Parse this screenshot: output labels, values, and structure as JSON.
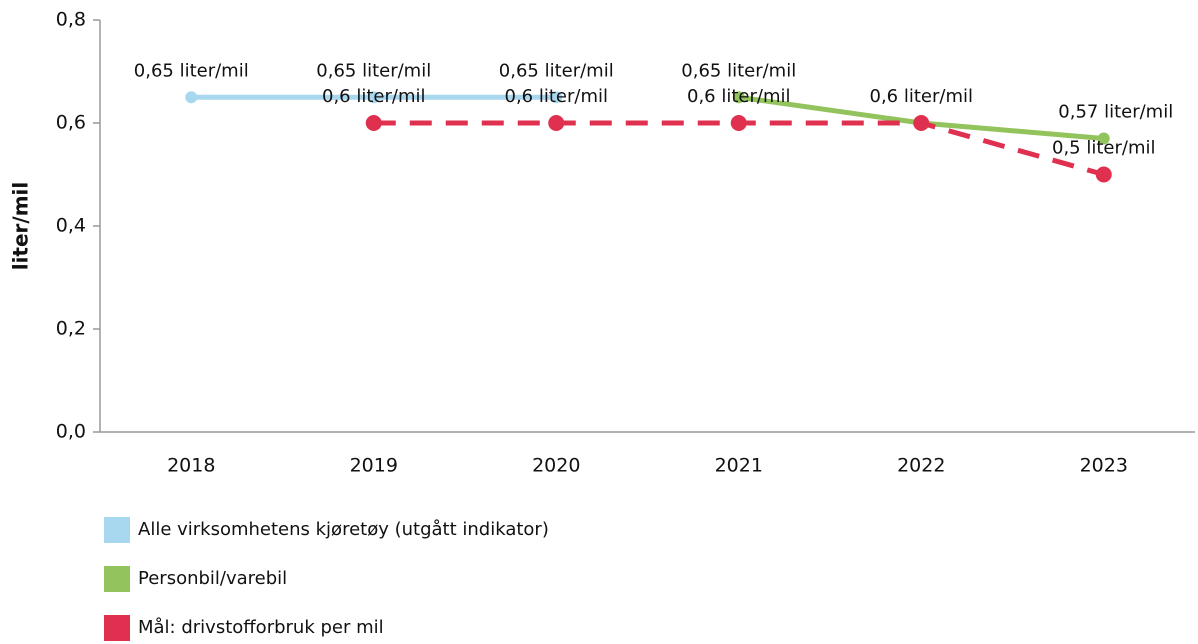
{
  "chart_data": {
    "type": "line",
    "y_label": "liter/mil",
    "categories": [
      "2018",
      "2019",
      "2020",
      "2021",
      "2022",
      "2023"
    ],
    "series": [
      {
        "name": "Alle virksomhetens kjøretøy (utgått indikator)",
        "color": "#a8d8ef",
        "values": [
          0.65,
          0.65,
          0.65,
          null,
          null,
          null
        ],
        "value_labels": [
          "0,65 liter/mil",
          "0,65 liter/mil",
          "0,65 liter/mil",
          null,
          null,
          null
        ]
      },
      {
        "name": "Personbil/varebil",
        "color": "#93c35c",
        "values": [
          null,
          null,
          null,
          0.65,
          0.6,
          0.57
        ],
        "value_labels": [
          null,
          null,
          null,
          "0,65 liter/mil",
          "0,6 liter/mil",
          "0,57 liter/mil"
        ]
      },
      {
        "name": "Mål: drivstofforbruk per mil",
        "color": "#e0304f",
        "line_style": "dashed",
        "values": [
          null,
          0.6,
          0.6,
          0.6,
          0.6,
          0.5
        ],
        "value_labels": [
          null,
          "0,6 liter/mil",
          "0,6 liter/mil",
          "0,6 liter/mil",
          null,
          "0,5 liter/mil"
        ]
      }
    ],
    "ylim": [
      0,
      0.8
    ],
    "yticks": [
      {
        "value": 0,
        "label": "0,0"
      },
      {
        "value": 0.2,
        "label": "0,2"
      },
      {
        "value": 0.4,
        "label": "0,4"
      },
      {
        "value": 0.6,
        "label": "0,6"
      },
      {
        "value": 0.8,
        "label": "0,8"
      }
    ],
    "grid": false,
    "legend": "bottom-left"
  }
}
